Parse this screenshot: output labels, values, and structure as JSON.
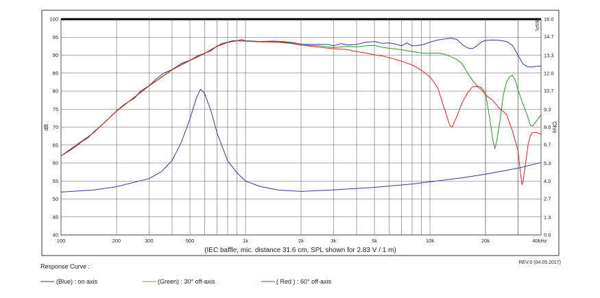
{
  "chart_data": {
    "type": "line",
    "xscale": "log",
    "xlim": [
      100,
      40000
    ],
    "x_tick_labels": [
      {
        "x": 100,
        "label": "100"
      },
      {
        "x": 200,
        "label": "200"
      },
      {
        "x": 300,
        "label": "300"
      },
      {
        "x": 500,
        "label": "500"
      },
      {
        "x": 1000,
        "label": "1k"
      },
      {
        "x": 2000,
        "label": "2k"
      },
      {
        "x": 3000,
        "label": "3k"
      },
      {
        "x": 5000,
        "label": "5k"
      },
      {
        "x": 10000,
        "label": "10k"
      },
      {
        "x": 20000,
        "label": "20k"
      },
      {
        "x": 40000,
        "label": "40kHz"
      }
    ],
    "ylim": [
      40,
      100
    ],
    "y_ticks": [
      40,
      45,
      50,
      55,
      60,
      65,
      70,
      75,
      80,
      85,
      90,
      95,
      100
    ],
    "ylabel": "dB",
    "y2lim": [
      0,
      16
    ],
    "y2_ticks": [
      "0.0",
      "1.3",
      "2.7",
      "4.0",
      "5.3",
      "6.7",
      "8.0",
      "9.3",
      "10.7",
      "12.0",
      "13.3",
      "14.7",
      "16.0"
    ],
    "y2label": "Ohm",
    "corner_label": "dBSPL",
    "note": "(IEC baffle, mic. distance 31.6 cm, SPL shown for 2.83 V / 1 m)",
    "grid": true,
    "series": [
      {
        "name": "on axis",
        "axis": "left",
        "color": "#2b3a9c",
        "points": [
          [
            100,
            62
          ],
          [
            110,
            63.3
          ],
          [
            120,
            64.6
          ],
          [
            130,
            66
          ],
          [
            140,
            67
          ],
          [
            150,
            68.6
          ],
          [
            170,
            71
          ],
          [
            200,
            74.5
          ],
          [
            220,
            76.3
          ],
          [
            250,
            78
          ],
          [
            270,
            80
          ],
          [
            300,
            81.5
          ],
          [
            330,
            83.5
          ],
          [
            360,
            85
          ],
          [
            400,
            86
          ],
          [
            450,
            87.7
          ],
          [
            500,
            88.6
          ],
          [
            550,
            89.8
          ],
          [
            600,
            90.5
          ],
          [
            650,
            91.2
          ],
          [
            700,
            92.5
          ],
          [
            750,
            93.3
          ],
          [
            800,
            93.6
          ],
          [
            850,
            94
          ],
          [
            900,
            94
          ],
          [
            950,
            94.3
          ],
          [
            1000,
            94
          ],
          [
            1100,
            93.9
          ],
          [
            1200,
            93.8
          ],
          [
            1400,
            93.9
          ],
          [
            1600,
            93.8
          ],
          [
            1800,
            93.5
          ],
          [
            2000,
            93.1
          ],
          [
            2200,
            93
          ],
          [
            2500,
            93
          ],
          [
            2800,
            93
          ],
          [
            3000,
            92.6
          ],
          [
            3300,
            93.2
          ],
          [
            3600,
            92.8
          ],
          [
            4000,
            93
          ],
          [
            4500,
            93.6
          ],
          [
            5000,
            93.8
          ],
          [
            5500,
            93.3
          ],
          [
            6000,
            93.4
          ],
          [
            6500,
            93.1
          ],
          [
            7000,
            92.6
          ],
          [
            7500,
            93.4
          ],
          [
            8000,
            92.6
          ],
          [
            9000,
            92.8
          ],
          [
            10000,
            93.6
          ],
          [
            11000,
            94.2
          ],
          [
            12000,
            94.5
          ],
          [
            13000,
            94.7
          ],
          [
            14000,
            94.4
          ],
          [
            15000,
            92.9
          ],
          [
            16000,
            92
          ],
          [
            17000,
            91.8
          ],
          [
            18000,
            92.6
          ],
          [
            19000,
            93.7
          ],
          [
            20000,
            94.1
          ],
          [
            22000,
            94.2
          ],
          [
            24000,
            94.1
          ],
          [
            26000,
            93.8
          ],
          [
            28000,
            92.7
          ],
          [
            30000,
            90
          ],
          [
            32000,
            87.5
          ],
          [
            34000,
            86.7
          ],
          [
            36000,
            86.7
          ],
          [
            38000,
            86.9
          ],
          [
            40000,
            87
          ]
        ]
      },
      {
        "name": "30° off-axis",
        "axis": "left",
        "color": "#1f9a1f",
        "points": [
          [
            100,
            62
          ],
          [
            150,
            68.4
          ],
          [
            200,
            74.4
          ],
          [
            300,
            81.4
          ],
          [
            400,
            85.9
          ],
          [
            500,
            88.5
          ],
          [
            600,
            90.4
          ],
          [
            700,
            92.4
          ],
          [
            800,
            93.5
          ],
          [
            900,
            94
          ],
          [
            1000,
            93.9
          ],
          [
            1200,
            93.7
          ],
          [
            1500,
            93.8
          ],
          [
            1800,
            93.3
          ],
          [
            2000,
            92.8
          ],
          [
            2500,
            92.6
          ],
          [
            3000,
            92.1
          ],
          [
            3500,
            92.4
          ],
          [
            4000,
            92.3
          ],
          [
            4500,
            92.6
          ],
          [
            5000,
            92.7
          ],
          [
            5500,
            92.2
          ],
          [
            6000,
            91.9
          ],
          [
            7000,
            91.5
          ],
          [
            8000,
            91
          ],
          [
            9000,
            90.6
          ],
          [
            10000,
            90.5
          ],
          [
            11000,
            90.6
          ],
          [
            12000,
            90.3
          ],
          [
            13000,
            89.5
          ],
          [
            14000,
            88.8
          ],
          [
            15000,
            87.5
          ],
          [
            16000,
            85
          ],
          [
            17000,
            83
          ],
          [
            18000,
            81.5
          ],
          [
            19000,
            81
          ],
          [
            20000,
            79.5
          ],
          [
            21000,
            73
          ],
          [
            22000,
            66
          ],
          [
            22500,
            64
          ],
          [
            23000,
            66
          ],
          [
            24000,
            72
          ],
          [
            25000,
            79
          ],
          [
            26000,
            82.5
          ],
          [
            27000,
            84
          ],
          [
            28000,
            84.4
          ],
          [
            29000,
            83
          ],
          [
            30000,
            80.3
          ],
          [
            32000,
            76.3
          ],
          [
            34000,
            72.7
          ],
          [
            35000,
            70.5
          ],
          [
            36000,
            70.3
          ],
          [
            38000,
            71.8
          ],
          [
            40000,
            73.5
          ]
        ]
      },
      {
        "name": "60° off-axis",
        "axis": "left",
        "color": "#e02020",
        "points": [
          [
            100,
            62
          ],
          [
            150,
            68.4
          ],
          [
            200,
            74.5
          ],
          [
            300,
            81.5
          ],
          [
            400,
            86
          ],
          [
            500,
            88.6
          ],
          [
            600,
            90.5
          ],
          [
            700,
            92.5
          ],
          [
            800,
            93.6
          ],
          [
            900,
            94
          ],
          [
            1000,
            93.9
          ],
          [
            1200,
            93.7
          ],
          [
            1500,
            93.6
          ],
          [
            1800,
            93.2
          ],
          [
            2000,
            92.8
          ],
          [
            2500,
            92.2
          ],
          [
            3000,
            91.8
          ],
          [
            3500,
            91.6
          ],
          [
            4000,
            91
          ],
          [
            4500,
            90.6
          ],
          [
            5000,
            90.1
          ],
          [
            5500,
            89.8
          ],
          [
            6000,
            89.3
          ],
          [
            7000,
            88.3
          ],
          [
            8000,
            87.3
          ],
          [
            9000,
            85.8
          ],
          [
            10000,
            84
          ],
          [
            11000,
            81
          ],
          [
            12000,
            75
          ],
          [
            12800,
            70.5
          ],
          [
            13200,
            70
          ],
          [
            14000,
            73
          ],
          [
            15000,
            77
          ],
          [
            16000,
            79.5
          ],
          [
            17000,
            81.2
          ],
          [
            18000,
            81.3
          ],
          [
            19000,
            80.5
          ],
          [
            20000,
            79
          ],
          [
            22000,
            77.3
          ],
          [
            24000,
            75
          ],
          [
            25000,
            74.3
          ],
          [
            26000,
            73.5
          ],
          [
            28000,
            69
          ],
          [
            30000,
            63.5
          ],
          [
            31000,
            57
          ],
          [
            31500,
            54
          ],
          [
            32000,
            55
          ],
          [
            33000,
            60
          ],
          [
            34000,
            65
          ],
          [
            35000,
            67.6
          ],
          [
            36000,
            68.5
          ],
          [
            38000,
            68.5
          ],
          [
            40000,
            68
          ]
        ]
      },
      {
        "name": "Impedance",
        "axis": "right",
        "color": "#2b3a9c",
        "points": [
          [
            100,
            3.18
          ],
          [
            150,
            3.33
          ],
          [
            200,
            3.58
          ],
          [
            300,
            4.18
          ],
          [
            350,
            4.7
          ],
          [
            400,
            5.53
          ],
          [
            450,
            6.9
          ],
          [
            500,
            8.6
          ],
          [
            540,
            10.1
          ],
          [
            570,
            10.8
          ],
          [
            600,
            10.5
          ],
          [
            650,
            9.2
          ],
          [
            700,
            7.6
          ],
          [
            800,
            5.5
          ],
          [
            900,
            4.6
          ],
          [
            1000,
            4.0
          ],
          [
            1200,
            3.6
          ],
          [
            1500,
            3.33
          ],
          [
            2000,
            3.23
          ],
          [
            3000,
            3.34
          ],
          [
            5000,
            3.53
          ],
          [
            8000,
            3.78
          ],
          [
            10000,
            3.94
          ],
          [
            15000,
            4.24
          ],
          [
            20000,
            4.51
          ],
          [
            30000,
            4.95
          ],
          [
            40000,
            5.37
          ]
        ]
      }
    ]
  },
  "legend_title": "Response Curve :",
  "legend": [
    {
      "label": "(Blue)  : on axis",
      "color": "#2b3a9c"
    },
    {
      "label": "(Green) : 30° off-axis",
      "color": "#8a9a2a"
    },
    {
      "label": "( Red ) : 60° off-axis",
      "color": "#e02020"
    }
  ],
  "revision": "REV:0 (04.05.2017)"
}
